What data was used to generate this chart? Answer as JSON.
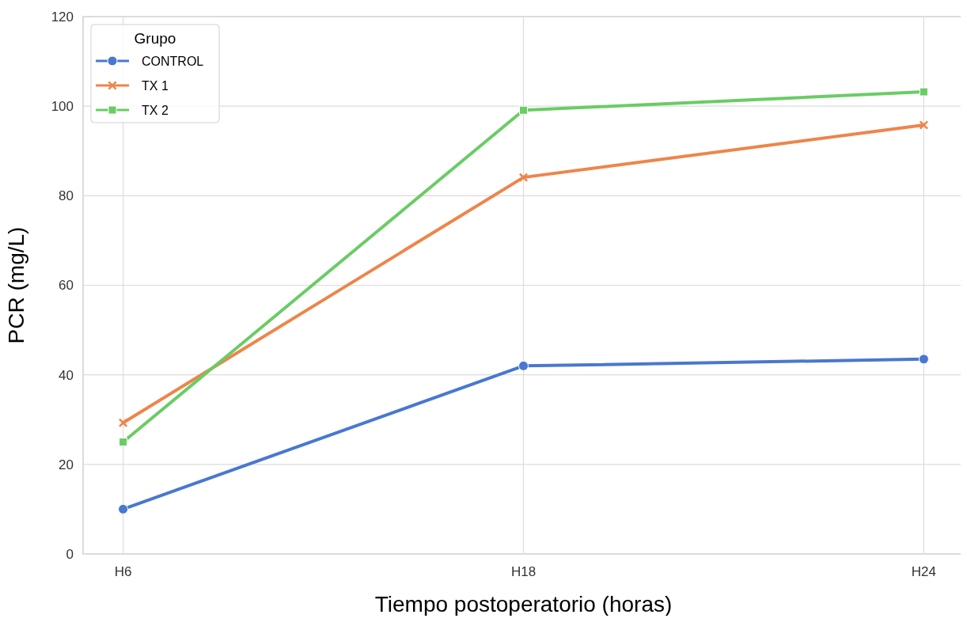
{
  "chart_data": {
    "type": "line",
    "xlabel": "Tiempo postoperatorio (horas)",
    "ylabel": "PCR (mg/L)",
    "legend_title": "Grupo",
    "categories": [
      "H6",
      "H18",
      "H24"
    ],
    "series": [
      {
        "name": "CONTROL",
        "color": "#4878d0",
        "marker": "circle",
        "values": [
          10,
          42,
          43.5
        ]
      },
      {
        "name": "TX 1",
        "color": "#ee854a",
        "marker": "cross",
        "values": [
          29.3,
          84.1,
          95.8
        ]
      },
      {
        "name": "TX 2",
        "color": "#6acc64",
        "marker": "square",
        "values": [
          25,
          99.1,
          103.2
        ]
      }
    ],
    "ylim": [
      0,
      120
    ],
    "yticks": [
      0,
      20,
      40,
      60,
      80,
      100,
      120
    ],
    "grid": true,
    "legend": "top left"
  }
}
